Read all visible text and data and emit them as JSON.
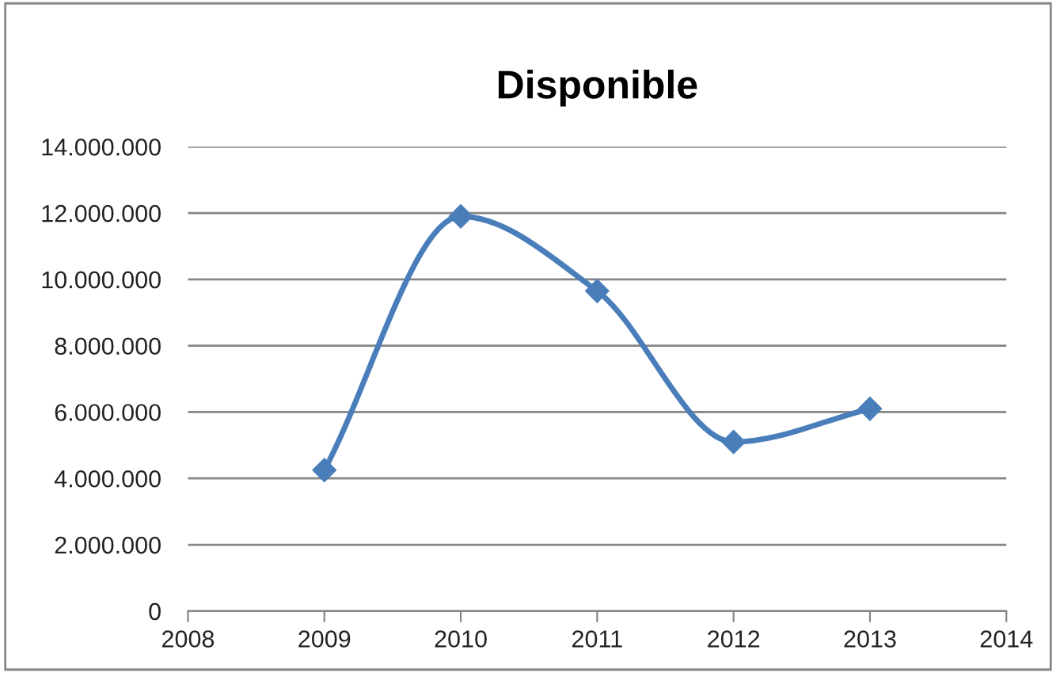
{
  "chart_data": {
    "type": "line",
    "title": "Disponible",
    "x": [
      2009,
      2010,
      2011,
      2012,
      2013
    ],
    "series": [
      {
        "color": "#4a7ebb",
        "values": [
          4250000,
          11900000,
          9650000,
          5100000,
          6100000
        ]
      }
    ],
    "xlim": [
      2008,
      2014
    ],
    "xticks": [
      2008,
      2009,
      2010,
      2011,
      2012,
      2013,
      2014
    ],
    "ylim": [
      0,
      14000000
    ],
    "yticks": [
      0,
      {
        "value": 2000000,
        "label": "2.000.000"
      },
      {
        "value": 4000000,
        "label": "4.000.000"
      },
      {
        "value": 6000000,
        "label": "6.000.000"
      },
      {
        "value": 8000000,
        "label": "8.000.000"
      },
      {
        "value": 10000000,
        "label": "10.000.000"
      },
      {
        "value": 12000000,
        "label": "12.000.000"
      },
      {
        "value": 14000000,
        "label": "14.000.000"
      }
    ],
    "grid": "y",
    "marker": "diamond",
    "line_style": "solid"
  }
}
